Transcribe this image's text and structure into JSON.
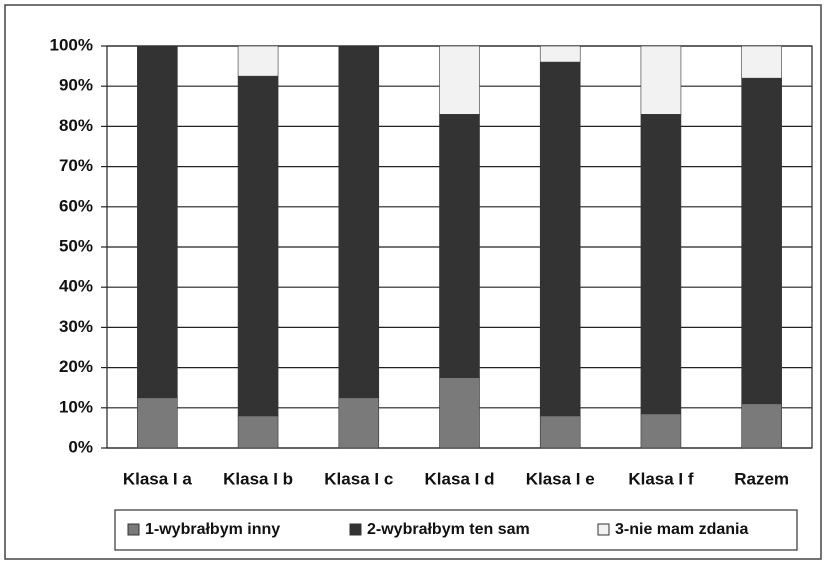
{
  "chart_data": {
    "type": "stacked_bar",
    "categories": [
      "Klasa I a",
      "Klasa I b",
      "Klasa I c",
      "Klasa I d",
      "Klasa I e",
      "Klasa I f",
      "Razem"
    ],
    "series": [
      {
        "name": "1-wybrałbym inny",
        "color": "#7a7a7a",
        "values": [
          12.5,
          8,
          12.5,
          17.5,
          8,
          8.5,
          11
        ]
      },
      {
        "name": "2-wybrałbym ten sam",
        "color": "#333333",
        "values": [
          87.5,
          84.5,
          87.5,
          65.5,
          88,
          74.5,
          81
        ]
      },
      {
        "name": "3-nie mam zdania",
        "color": "#f2f2f2",
        "values": [
          0,
          7.5,
          0,
          17,
          4,
          17,
          8
        ]
      }
    ],
    "ylim": [
      0,
      100
    ],
    "yticks": [
      {
        "value": 0,
        "label": "0%"
      },
      {
        "value": 10,
        "label": "10%"
      },
      {
        "value": 20,
        "label": "20%"
      },
      {
        "value": 30,
        "label": "30%"
      },
      {
        "value": 40,
        "label": "40%"
      },
      {
        "value": 50,
        "label": "50%"
      },
      {
        "value": 60,
        "label": "60%"
      },
      {
        "value": 70,
        "label": "70%"
      },
      {
        "value": 80,
        "label": "80%"
      },
      {
        "value": 90,
        "label": "90%"
      },
      {
        "value": 100,
        "label": "100%"
      }
    ],
    "grid": true,
    "legend": "bottom"
  }
}
